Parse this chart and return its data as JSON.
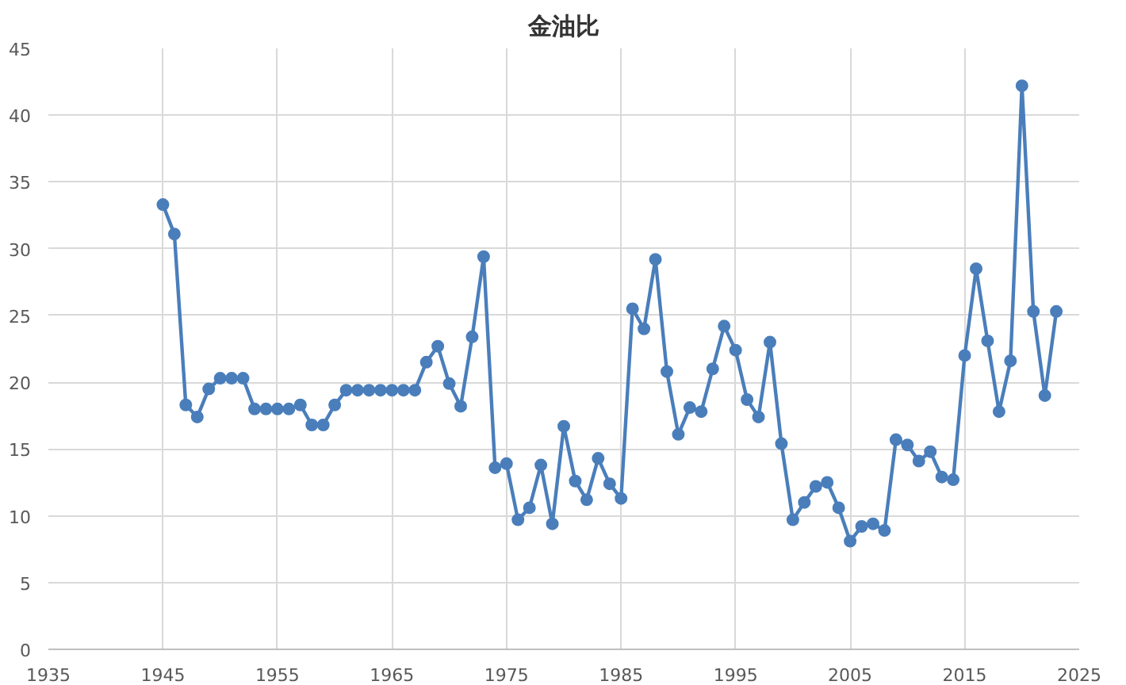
{
  "chart_data": {
    "type": "line",
    "title": "金油比",
    "x": [
      1945,
      1946,
      1947,
      1948,
      1949,
      1950,
      1951,
      1952,
      1953,
      1954,
      1955,
      1956,
      1957,
      1958,
      1959,
      1960,
      1961,
      1962,
      1963,
      1964,
      1965,
      1966,
      1967,
      1968,
      1969,
      1970,
      1971,
      1972,
      1973,
      1974,
      1975,
      1976,
      1977,
      1978,
      1979,
      1980,
      1981,
      1982,
      1983,
      1984,
      1985,
      1986,
      1987,
      1988,
      1989,
      1990,
      1991,
      1992,
      1993,
      1994,
      1995,
      1996,
      1997,
      1998,
      1999,
      2000,
      2001,
      2002,
      2003,
      2004,
      2005,
      2006,
      2007,
      2008,
      2009,
      2010,
      2011,
      2012,
      2013,
      2014,
      2015,
      2016,
      2017,
      2018,
      2019,
      2020,
      2021,
      2022,
      2023
    ],
    "series": [
      {
        "color": "#4a7ebb",
        "values": [
          33.3,
          31.1,
          18.3,
          17.4,
          19.5,
          20.3,
          20.3,
          20.3,
          18.0,
          18.0,
          18.0,
          18.0,
          18.3,
          16.8,
          16.8,
          18.3,
          19.4,
          19.4,
          19.4,
          19.4,
          19.4,
          19.4,
          19.4,
          21.5,
          22.7,
          19.9,
          18.2,
          23.4,
          29.4,
          13.6,
          13.9,
          9.7,
          10.6,
          13.8,
          9.4,
          16.7,
          12.6,
          11.2,
          14.3,
          12.4,
          11.3,
          25.5,
          24.0,
          29.2,
          20.8,
          16.1,
          18.1,
          17.8,
          21.0,
          24.2,
          22.4,
          18.7,
          17.4,
          23.0,
          15.4,
          9.7,
          11.0,
          12.2,
          12.5,
          10.6,
          8.1,
          9.2,
          9.4,
          8.9,
          15.7,
          15.3,
          14.1,
          14.8,
          12.9,
          12.7,
          22.0,
          28.5,
          23.1,
          17.8,
          21.6,
          42.2,
          25.3,
          19.0,
          25.3
        ]
      }
    ],
    "xlim": [
      1935,
      2025
    ],
    "xticks": [
      1935,
      1945,
      1955,
      1965,
      1975,
      1985,
      1995,
      2005,
      2015,
      2025
    ],
    "ylim": [
      0,
      45
    ],
    "yticks": [
      0,
      5,
      10,
      15,
      20,
      25,
      30,
      35,
      40,
      45
    ],
    "grid": true,
    "marker": "circle",
    "line_style": "solid"
  }
}
